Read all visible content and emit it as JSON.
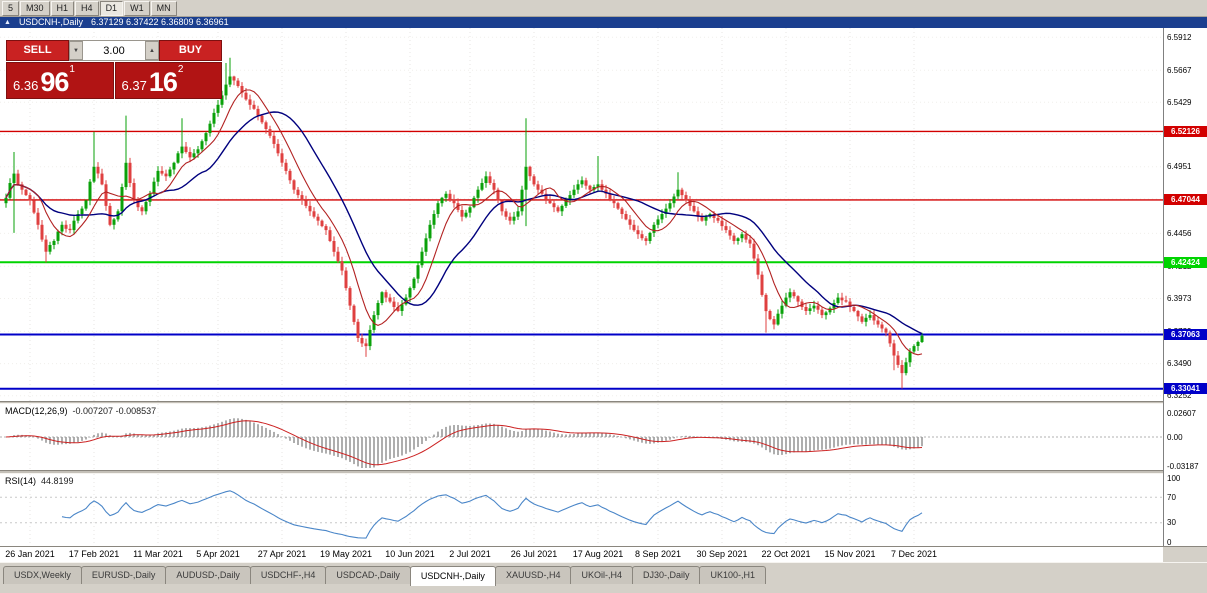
{
  "toolbar": {
    "timeframes": [
      "5",
      "M30",
      "H1",
      "H4",
      "D1",
      "W1",
      "MN"
    ],
    "active": "D1"
  },
  "title_bar": {
    "symbol": "USDCNH-,Daily",
    "ohlc": "6.37129 6.37422 6.36809 6.36961"
  },
  "icons": {
    "title_icon": "▲",
    "spin_up": "▲",
    "spin_down": "▼"
  },
  "trade_panel": {
    "sell_label": "SELL",
    "buy_label": "BUY",
    "volume": "3.00",
    "bid": {
      "prefix": "6.36",
      "big": "96",
      "sup": "1"
    },
    "ask": {
      "prefix": "6.37",
      "big": "16",
      "sup": "2"
    }
  },
  "indicators": {
    "macd_title": "MACD(12,26,9)",
    "macd_values": "-0.007207 -0.008537",
    "rsi_title": "RSI(14)",
    "rsi_value": "44.8199"
  },
  "scales": {
    "price_ticks": [
      "6.5912",
      "6.5667",
      "6.5429",
      "6.5190",
      "6.4951",
      "6.4712",
      "6.4456",
      "6.4212",
      "6.3973",
      "6.3729",
      "6.3490",
      "6.3252"
    ],
    "macd_ticks": [
      {
        "label": "0.02607",
        "value": 0.02607
      },
      {
        "label": "0.00",
        "value": 0
      },
      {
        "label": "-0.03187",
        "value": -0.03187
      }
    ],
    "rsi_ticks": [
      {
        "label": "100",
        "value": 100
      },
      {
        "label": "70",
        "value": 70
      },
      {
        "label": "30",
        "value": 30
      },
      {
        "label": "0",
        "value": 0
      }
    ]
  },
  "hlines": [
    {
      "price": 6.52126,
      "label": "6.52126",
      "color": "#d20000",
      "width": 1.4
    },
    {
      "price": 6.47044,
      "label": "6.47044",
      "color": "#d20000",
      "width": 1.4
    },
    {
      "price": 6.42424,
      "label": "6.42424",
      "color": "#00d400",
      "width": 2
    },
    {
      "price": 6.37063,
      "label": "6.37063",
      "color": "#0000c8",
      "width": 2
    },
    {
      "price": 6.33041,
      "label": "6.33041",
      "color": "#0000c8",
      "width": 2
    }
  ],
  "colors": {
    "bull": "#0aa10a",
    "bear": "#df4040",
    "ma_slow": "#00007e",
    "ma_fast": "#b22222",
    "macd_hist": "#9a9a9a",
    "macd_signal": "#cc2222",
    "rsi_line": "#4a86c8",
    "grid": "#e7e6e3",
    "titlebar": "#1b3f8f"
  },
  "chart_data": {
    "type": "candlestick",
    "symbol": "USDCNH-",
    "timeframe": "Daily",
    "price_min": 6.322,
    "price_max": 6.598,
    "first_open": 6.468,
    "ma_fast_period": 8,
    "ma_slow_period": 20,
    "macd_params": [
      12,
      26,
      9
    ],
    "rsi_period": 14,
    "x_labels": [
      {
        "i": 6,
        "label": "26 Jan 2021"
      },
      {
        "i": 22,
        "label": "17 Feb 2021"
      },
      {
        "i": 38,
        "label": "11 Mar 2021"
      },
      {
        "i": 53,
        "label": "5 Apr 2021"
      },
      {
        "i": 69,
        "label": "27 Apr 2021"
      },
      {
        "i": 85,
        "label": "19 May 2021"
      },
      {
        "i": 101,
        "label": "10 Jun 2021"
      },
      {
        "i": 116,
        "label": "2 Jul 2021"
      },
      {
        "i": 132,
        "label": "26 Jul 2021"
      },
      {
        "i": 148,
        "label": "17 Aug 2021"
      },
      {
        "i": 163,
        "label": "8 Sep 2021"
      },
      {
        "i": 179,
        "label": "30 Sep 2021"
      },
      {
        "i": 195,
        "label": "22 Oct 2021"
      },
      {
        "i": 211,
        "label": "15 Nov 2021"
      },
      {
        "i": 227,
        "label": "7 Dec 2021"
      }
    ],
    "closes": [
      6.472,
      6.483,
      6.49,
      6.482,
      6.478,
      6.474,
      6.47,
      6.461,
      6.452,
      6.441,
      6.432,
      6.437,
      6.44,
      6.447,
      6.452,
      6.449,
      6.448,
      6.455,
      6.46,
      6.464,
      6.47,
      6.484,
      6.495,
      6.49,
      6.482,
      6.466,
      6.452,
      6.456,
      6.462,
      6.48,
      6.498,
      6.483,
      6.47,
      6.465,
      6.462,
      6.469,
      6.475,
      6.484,
      6.492,
      6.49,
      6.488,
      6.493,
      6.498,
      6.505,
      6.51,
      6.506,
      6.502,
      6.505,
      6.508,
      6.514,
      6.52,
      6.527,
      6.535,
      6.541,
      6.548,
      6.556,
      6.562,
      6.559,
      6.555,
      6.55,
      6.545,
      6.541,
      6.538,
      6.533,
      6.528,
      6.523,
      6.518,
      6.512,
      6.505,
      6.498,
      6.492,
      6.485,
      6.478,
      6.474,
      6.47,
      6.466,
      6.462,
      6.458,
      6.455,
      6.451,
      6.448,
      6.44,
      6.432,
      6.425,
      6.418,
      6.405,
      6.392,
      6.38,
      6.368,
      6.364,
      6.362,
      6.374,
      6.385,
      6.394,
      6.402,
      6.398,
      6.395,
      6.391,
      6.388,
      6.393,
      6.398,
      6.405,
      6.412,
      6.422,
      6.432,
      6.442,
      6.452,
      6.46,
      6.468,
      6.472,
      6.475,
      6.471,
      6.468,
      6.463,
      6.458,
      6.461,
      6.465,
      6.472,
      6.478,
      6.483,
      6.488,
      6.483,
      6.478,
      6.47,
      6.462,
      6.458,
      6.455,
      6.458,
      6.462,
      6.478,
      6.495,
      6.488,
      6.482,
      6.478,
      6.475,
      6.471,
      6.468,
      6.465,
      6.462,
      6.466,
      6.47,
      6.474,
      6.478,
      6.482,
      6.485,
      6.481,
      6.478,
      6.48,
      6.482,
      6.478,
      6.475,
      6.471,
      6.468,
      6.464,
      6.46,
      6.456,
      6.452,
      6.448,
      6.445,
      6.442,
      6.44,
      6.446,
      6.452,
      6.456,
      6.46,
      6.464,
      6.468,
      6.473,
      6.478,
      6.474,
      6.47,
      6.466,
      6.462,
      6.458,
      6.455,
      6.458,
      6.46,
      6.457,
      6.455,
      6.451,
      6.448,
      6.444,
      6.44,
      6.442,
      6.445,
      6.441,
      6.438,
      6.427,
      6.415,
      6.4,
      6.388,
      6.382,
      6.378,
      6.386,
      6.392,
      6.398,
      6.402,
      6.399,
      6.395,
      6.391,
      6.388,
      6.39,
      6.392,
      6.389,
      6.385,
      6.387,
      6.39,
      6.394,
      6.398,
      6.396,
      6.395,
      6.391,
      6.388,
      6.384,
      6.38,
      6.383,
      6.385,
      6.381,
      6.378,
      6.375,
      6.372,
      6.364,
      6.355,
      6.348,
      6.342,
      6.35,
      6.358,
      6.362,
      6.365,
      6.3696
    ],
    "wick_overrides": {
      "2": {
        "h": 6.506,
        "l": 6.446
      },
      "10": {
        "l": 6.424
      },
      "22": {
        "h": 6.521
      },
      "30": {
        "h": 6.533
      },
      "44": {
        "h": 6.531
      },
      "55": {
        "h": 6.572
      },
      "56": {
        "h": 6.576
      },
      "90": {
        "l": 6.354
      },
      "130": {
        "h": 6.531,
        "l": 6.451
      },
      "148": {
        "h": 6.503
      },
      "168": {
        "h": 6.491
      },
      "190": {
        "l": 6.372
      },
      "222": {
        "l": 6.344
      },
      "224": {
        "l": 6.3305
      }
    }
  },
  "tabs": {
    "items": [
      {
        "label": "USDX,Weekly",
        "active": false
      },
      {
        "label": "EURUSD-,Daily",
        "active": false
      },
      {
        "label": "AUDUSD-,Daily",
        "active": false
      },
      {
        "label": "USDCHF-,H4",
        "active": false
      },
      {
        "label": "USDCAD-,Daily",
        "active": false
      },
      {
        "label": "USDCNH-,Daily",
        "active": true
      },
      {
        "label": "XAUUSD-,H4",
        "active": false
      },
      {
        "label": "UKOil-,H4",
        "active": false
      },
      {
        "label": "DJ30-,Daily",
        "active": false
      },
      {
        "label": "UK100-,H1",
        "active": false
      }
    ]
  }
}
